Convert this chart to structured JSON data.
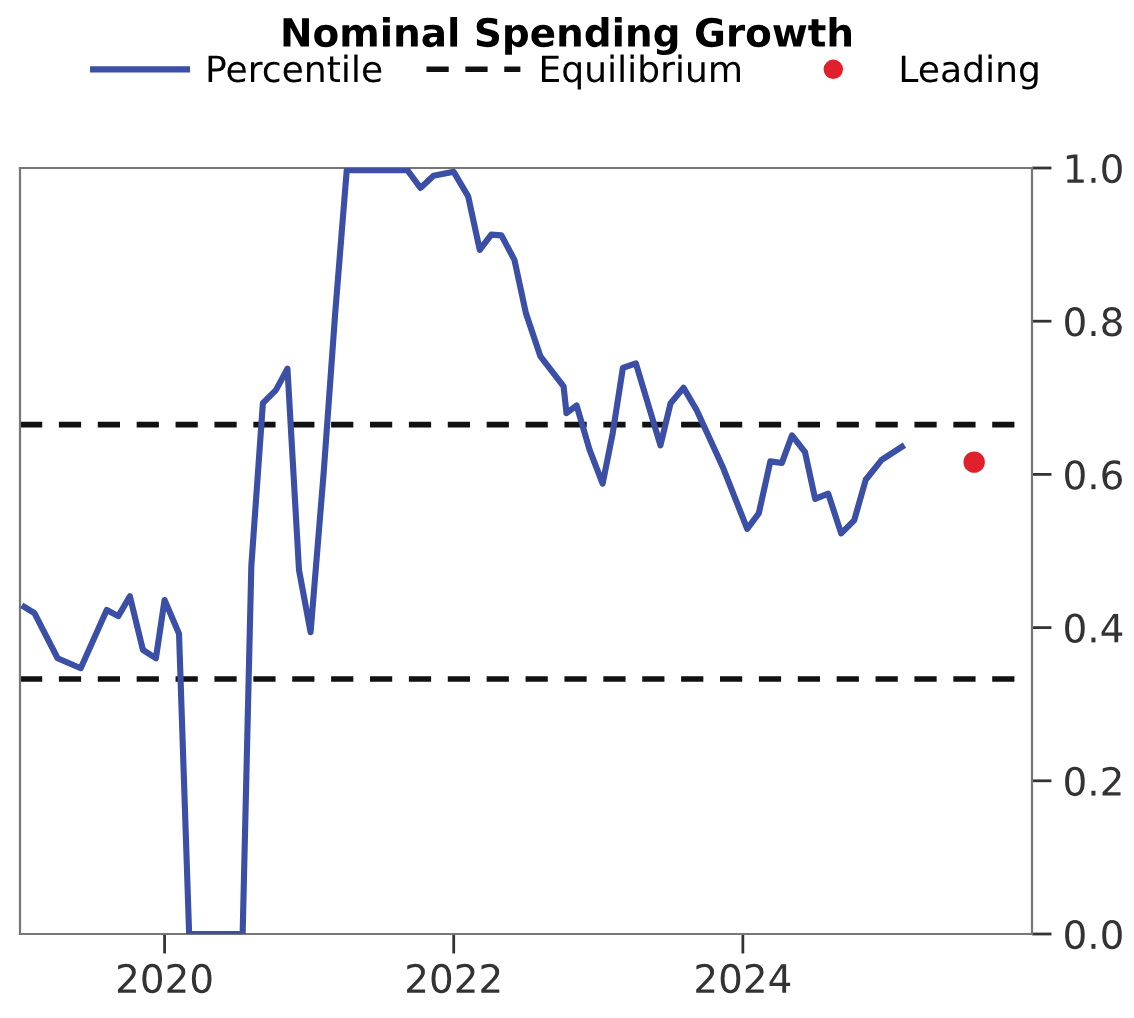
{
  "chart_data": {
    "type": "line",
    "title": "Nominal Spending Growth",
    "xlim": [
      2019.0,
      2026.0
    ],
    "xticks": [
      2020,
      2022,
      2024
    ],
    "ylim": [
      0.0,
      1.0
    ],
    "yticks": [
      {
        "value": 0,
        "label": "0.0"
      },
      0.2,
      0.4,
      0.6,
      0.8,
      {
        "value": 1,
        "label": "1.0"
      }
    ],
    "grid": false,
    "legend": "top",
    "line_style": "solid",
    "marker": "none",
    "series": [
      {
        "name": "Percentile",
        "color": "#3a4fa5",
        "x": [
          2019.03,
          2019.1,
          2019.26,
          2019.42,
          2019.6,
          2019.68,
          2019.76,
          2019.85,
          2019.94,
          2020.0,
          2020.1,
          2020.17,
          2020.54,
          2020.6,
          2020.68,
          2020.77,
          2020.85,
          2020.93,
          2021.01,
          2021.1,
          2021.18,
          2021.26,
          2021.68,
          2021.77,
          2021.86,
          2022.0,
          2022.1,
          2022.18,
          2022.26,
          2022.33,
          2022.42,
          2022.5,
          2022.6,
          2022.76,
          2022.78,
          2022.85,
          2022.94,
          2023.03,
          2023.1,
          2023.17,
          2023.26,
          2023.43,
          2023.5,
          2023.59,
          2023.68,
          2023.86,
          2024.03,
          2024.11,
          2024.19,
          2024.27,
          2024.34,
          2024.43,
          2024.5,
          2024.59,
          2024.68,
          2024.77,
          2024.85,
          2024.96,
          2025.1
        ],
        "values": [
          0.427,
          0.419,
          0.36,
          0.347,
          0.423,
          0.415,
          0.441,
          0.371,
          0.36,
          0.436,
          0.392,
          0.0,
          0.0,
          0.48,
          0.693,
          0.71,
          0.738,
          0.475,
          0.394,
          0.601,
          0.81,
          0.997,
          0.997,
          0.974,
          0.99,
          0.995,
          0.963,
          0.893,
          0.913,
          0.912,
          0.88,
          0.81,
          0.754,
          0.715,
          0.68,
          0.69,
          0.632,
          0.588,
          0.654,
          0.739,
          0.745,
          0.638,
          0.693,
          0.713,
          0.684,
          0.61,
          0.529,
          0.549,
          0.617,
          0.615,
          0.651,
          0.629,
          0.568,
          0.575,
          0.523,
          0.54,
          0.593,
          0.619,
          0.636
        ]
      },
      {
        "name": "Leading",
        "type": "scatter",
        "color": "#e0202a",
        "marker": "circle",
        "x": [
          2025.6
        ],
        "values": [
          0.616
        ]
      }
    ],
    "ref_lines": [
      {
        "axis": "y",
        "value": 0.665,
        "label": "Equilibrium",
        "color": "#111111",
        "line_style": "dashed"
      },
      {
        "axis": "y",
        "value": 0.333,
        "color": "#111111",
        "line_style": "dashed"
      }
    ]
  }
}
